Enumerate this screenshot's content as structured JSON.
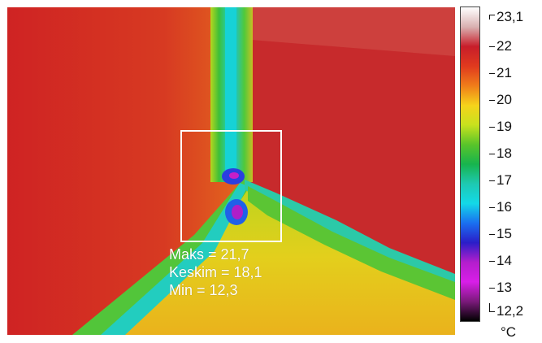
{
  "measurement": {
    "max_text": "Maks = 21,7",
    "avg_text": "Keskim = 18,1",
    "min_text": "Min = 12,3"
  },
  "scale": {
    "max_label": "23,1",
    "min_label": "12,2",
    "ticks": [
      "22",
      "21",
      "20",
      "19",
      "18",
      "17",
      "16",
      "15",
      "14",
      "13"
    ],
    "unit": "°C",
    "colors": [
      "#ffffff",
      "#d9b0b0",
      "#c81d2a",
      "#e03a1e",
      "#f07d1a",
      "#f5d31b",
      "#c8e21e",
      "#59c42a",
      "#17b44d",
      "#1ec9b2",
      "#13d9e8",
      "#1a6ff0",
      "#2a1ec8",
      "#b41ecc",
      "#d81ee8",
      "#7a1a7a",
      "#000000"
    ]
  }
}
